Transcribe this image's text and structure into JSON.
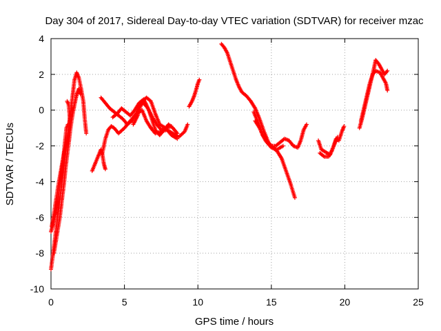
{
  "chart_data": {
    "type": "scatter",
    "title": "Day 304 of 2017, Sidereal Day-to-day VTEC variation (SDTVAR) for receiver mzac",
    "xlabel": "GPS time / hours",
    "ylabel": "SDTVAR / TECUs",
    "xlim": [
      0,
      25
    ],
    "ylim": [
      -10,
      4
    ],
    "xticks": [
      "0",
      "5",
      "10",
      "15",
      "20",
      "25"
    ],
    "yticks": [
      "-10",
      "-8",
      "-6",
      "-4",
      "-2",
      "0",
      "2",
      "4"
    ],
    "grid": true,
    "marker": "+",
    "series": [
      {
        "name": "SDTVAR",
        "color": "#ff0000",
        "segments": [
          [
            [
              0.0,
              -8.9
            ],
            [
              0.15,
              -8.0
            ],
            [
              0.3,
              -7.0
            ],
            [
              0.45,
              -6.0
            ],
            [
              0.6,
              -5.0
            ],
            [
              0.75,
              -4.0
            ],
            [
              0.9,
              -3.0
            ],
            [
              1.05,
              -2.0
            ],
            [
              1.2,
              -1.0
            ],
            [
              1.35,
              0.0
            ],
            [
              1.5,
              1.0
            ],
            [
              1.6,
              1.7
            ],
            [
              1.75,
              2.1
            ],
            [
              1.9,
              1.8
            ],
            [
              2.05,
              1.2
            ],
            [
              2.2,
              0.5
            ],
            [
              2.3,
              -0.5
            ],
            [
              2.4,
              -1.3
            ]
          ],
          [
            [
              0.0,
              -6.8
            ],
            [
              0.2,
              -6.2
            ],
            [
              0.4,
              -5.4
            ],
            [
              0.55,
              -4.5
            ],
            [
              0.7,
              -3.6
            ],
            [
              0.85,
              -2.6
            ],
            [
              0.95,
              -1.8
            ],
            [
              1.05,
              -1.0
            ],
            [
              1.15,
              -0.8
            ]
          ],
          [
            [
              0.2,
              -8.0
            ],
            [
              0.4,
              -7.0
            ],
            [
              0.6,
              -6.0
            ],
            [
              0.75,
              -5.0
            ],
            [
              0.9,
              -4.0
            ],
            [
              1.0,
              -3.2
            ],
            [
              1.1,
              -2.5
            ],
            [
              1.2,
              -1.9
            ],
            [
              1.3,
              -1.2
            ],
            [
              1.4,
              -0.6
            ],
            [
              1.5,
              -0.1
            ],
            [
              1.6,
              0.3
            ],
            [
              1.7,
              0.7
            ],
            [
              1.8,
              1.0
            ],
            [
              1.9,
              1.2
            ],
            [
              2.0,
              0.9
            ]
          ],
          [
            [
              0.05,
              -6.5
            ],
            [
              0.2,
              -5.8
            ],
            [
              0.35,
              -5.0
            ],
            [
              0.5,
              -4.2
            ],
            [
              0.65,
              -3.5
            ],
            [
              0.8,
              -2.8
            ],
            [
              0.95,
              -2.2
            ],
            [
              1.1,
              -1.6
            ],
            [
              1.25,
              -1.0
            ],
            [
              1.3,
              -0.6
            ],
            [
              1.2,
              0.3
            ],
            [
              1.1,
              0.5
            ]
          ],
          [
            [
              2.8,
              -3.4
            ],
            [
              3.0,
              -3.0
            ],
            [
              3.2,
              -2.6
            ],
            [
              3.4,
              -2.2
            ],
            [
              3.5,
              -2.5
            ],
            [
              3.6,
              -3.0
            ],
            [
              3.7,
              -3.3
            ]
          ],
          [
            [
              3.5,
              -2.4
            ],
            [
              3.7,
              -1.6
            ],
            [
              3.9,
              -1.1
            ],
            [
              4.1,
              -0.9
            ],
            [
              4.3,
              -1.0
            ],
            [
              4.6,
              -1.3
            ],
            [
              5.0,
              -1.0
            ],
            [
              5.4,
              -0.6
            ],
            [
              5.8,
              -0.2
            ],
            [
              6.2,
              0.0
            ],
            [
              6.5,
              -0.6
            ],
            [
              6.8,
              -1.0
            ],
            [
              7.1,
              -1.3
            ],
            [
              7.5,
              -1.2
            ],
            [
              7.9,
              -1.1
            ],
            [
              8.3,
              -1.3
            ],
            [
              8.7,
              -1.5
            ],
            [
              9.1,
              -1.2
            ],
            [
              9.3,
              -0.8
            ]
          ],
          [
            [
              3.4,
              0.7
            ],
            [
              3.7,
              0.4
            ],
            [
              4.0,
              0.1
            ],
            [
              4.3,
              -0.1
            ],
            [
              4.6,
              -0.3
            ],
            [
              4.9,
              -0.5
            ],
            [
              5.2,
              -0.8
            ],
            [
              5.5,
              -0.6
            ],
            [
              5.8,
              -0.2
            ],
            [
              6.0,
              0.2
            ],
            [
              6.3,
              0.4
            ],
            [
              6.6,
              0.1
            ],
            [
              6.9,
              -0.4
            ],
            [
              7.2,
              -0.8
            ],
            [
              7.5,
              -1.1
            ],
            [
              7.8,
              -1.0
            ],
            [
              8.2,
              -1.4
            ],
            [
              8.6,
              -1.6
            ]
          ],
          [
            [
              4.2,
              -0.4
            ],
            [
              4.5,
              -0.2
            ],
            [
              4.8,
              0.1
            ],
            [
              5.1,
              -0.1
            ],
            [
              5.4,
              -0.3
            ],
            [
              5.7,
              0.0
            ],
            [
              6.0,
              0.4
            ],
            [
              6.3,
              0.6
            ],
            [
              6.5,
              0.3
            ],
            [
              6.7,
              -0.1
            ],
            [
              6.9,
              -0.6
            ],
            [
              7.1,
              -1.1
            ],
            [
              7.4,
              -1.4
            ],
            [
              7.7,
              -1.1
            ],
            [
              8.0,
              -0.8
            ],
            [
              8.3,
              -1.0
            ],
            [
              8.6,
              -1.3
            ]
          ],
          [
            [
              5.6,
              -0.8
            ],
            [
              5.9,
              -0.3
            ],
            [
              6.2,
              0.5
            ],
            [
              6.5,
              0.7
            ],
            [
              6.8,
              0.5
            ],
            [
              7.1,
              -0.2
            ],
            [
              7.4,
              -0.8
            ],
            [
              7.8,
              -1.0
            ],
            [
              8.2,
              -0.9
            ]
          ],
          [
            [
              9.4,
              0.2
            ],
            [
              9.6,
              0.5
            ],
            [
              9.75,
              0.8
            ],
            [
              9.9,
              1.2
            ],
            [
              10.0,
              1.5
            ],
            [
              10.1,
              1.7
            ]
          ],
          [
            [
              11.6,
              3.7
            ],
            [
              11.8,
              3.5
            ],
            [
              12.0,
              3.2
            ],
            [
              12.2,
              2.7
            ],
            [
              12.4,
              2.2
            ],
            [
              12.6,
              1.7
            ],
            [
              12.8,
              1.3
            ],
            [
              13.0,
              1.0
            ],
            [
              13.3,
              0.8
            ],
            [
              13.6,
              0.5
            ],
            [
              13.9,
              0.1
            ],
            [
              14.2,
              -0.5
            ],
            [
              14.5,
              -1.2
            ],
            [
              14.8,
              -1.8
            ],
            [
              15.1,
              -2.1
            ],
            [
              15.4,
              -2.3
            ],
            [
              15.7,
              -2.7
            ],
            [
              16.0,
              -3.4
            ],
            [
              16.3,
              -4.1
            ],
            [
              16.6,
              -4.9
            ]
          ],
          [
            [
              13.8,
              -0.1
            ],
            [
              14.1,
              -0.7
            ],
            [
              14.4,
              -1.4
            ],
            [
              14.7,
              -1.8
            ],
            [
              15.0,
              -2.0
            ],
            [
              15.3,
              -2.0
            ],
            [
              15.6,
              -1.8
            ],
            [
              15.9,
              -1.6
            ],
            [
              16.2,
              -1.7
            ],
            [
              16.5,
              -2.0
            ],
            [
              16.8,
              -2.1
            ],
            [
              17.0,
              -1.7
            ],
            [
              17.2,
              -1.1
            ],
            [
              17.4,
              -0.8
            ]
          ],
          [
            [
              13.9,
              -0.6
            ],
            [
              14.2,
              -1.0
            ],
            [
              14.6,
              -1.7
            ],
            [
              15.0,
              -2.1
            ],
            [
              15.4,
              -2.2
            ],
            [
              15.8,
              -2.0
            ]
          ],
          [
            [
              18.2,
              -1.7
            ],
            [
              18.4,
              -2.2
            ],
            [
              18.6,
              -2.3
            ],
            [
              18.8,
              -2.4
            ],
            [
              19.0,
              -2.5
            ],
            [
              19.2,
              -2.1
            ],
            [
              19.4,
              -1.6
            ],
            [
              19.6,
              -1.7
            ],
            [
              19.8,
              -1.2
            ],
            [
              19.95,
              -0.9
            ]
          ],
          [
            [
              18.3,
              -2.4
            ],
            [
              18.6,
              -2.6
            ],
            [
              18.9,
              -2.6
            ],
            [
              19.1,
              -2.3
            ],
            [
              19.3,
              -1.9
            ],
            [
              19.5,
              -1.5
            ]
          ],
          [
            [
              21.0,
              -1.0
            ],
            [
              21.2,
              -0.4
            ],
            [
              21.4,
              0.3
            ],
            [
              21.6,
              1.0
            ],
            [
              21.8,
              1.7
            ],
            [
              22.0,
              2.4
            ],
            [
              22.1,
              2.8
            ],
            [
              22.3,
              2.6
            ],
            [
              22.5,
              2.3
            ],
            [
              22.7,
              2.0
            ],
            [
              22.9,
              2.2
            ]
          ],
          [
            [
              21.1,
              -0.6
            ],
            [
              21.3,
              0.1
            ],
            [
              21.5,
              0.8
            ],
            [
              21.7,
              1.5
            ],
            [
              21.9,
              2.0
            ],
            [
              22.1,
              2.2
            ],
            [
              22.4,
              2.1
            ],
            [
              22.6,
              1.8
            ],
            [
              22.8,
              1.5
            ],
            [
              22.9,
              1.1
            ]
          ]
        ]
      }
    ]
  }
}
